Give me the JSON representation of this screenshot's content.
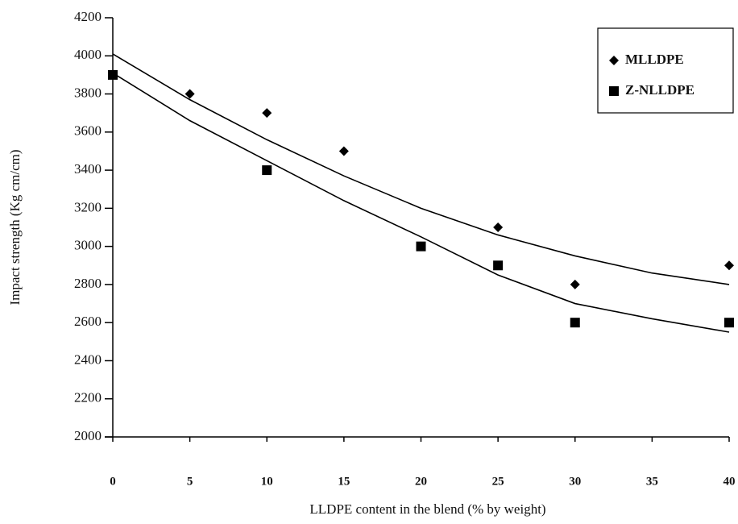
{
  "chart_data": {
    "type": "scatter",
    "x_label": "LLDPE content in the blend (% by weight)",
    "y_label": "Impact strength (Kg cm/cm)",
    "xlim": [
      0,
      40
    ],
    "xticks": [
      0,
      5,
      10,
      15,
      20,
      25,
      30,
      35,
      40
    ],
    "ylim": [
      2000,
      4200
    ],
    "yticks": [
      2000,
      2200,
      2400,
      2600,
      2800,
      3000,
      3200,
      3400,
      3600,
      3800,
      4000,
      4200
    ],
    "legend": "top-right",
    "series": [
      {
        "name": "MLLDPE",
        "color": "#000000",
        "marker": "diamond",
        "x": [
          0,
          5,
          10,
          15,
          20,
          25,
          30,
          40
        ],
        "values": [
          3900,
          3800,
          3700,
          3500,
          3000,
          3100,
          2800,
          2900
        ],
        "trend": {
          "x": [
            0,
            5,
            10,
            15,
            20,
            25,
            30,
            35,
            40
          ],
          "values": [
            4010,
            3770,
            3560,
            3370,
            3200,
            3060,
            2950,
            2860,
            2800
          ]
        }
      },
      {
        "name": "Z-NLLDPE",
        "color": "#000000",
        "marker": "square",
        "x": [
          0,
          10,
          20,
          25,
          30,
          40
        ],
        "values": [
          3900,
          3400,
          3000,
          2900,
          2600,
          2600
        ],
        "trend": {
          "x": [
            0,
            5,
            10,
            15,
            20,
            25,
            30,
            35,
            40
          ],
          "values": [
            3910,
            3660,
            3450,
            3240,
            3050,
            2850,
            2700,
            2620,
            2550
          ]
        }
      }
    ]
  }
}
